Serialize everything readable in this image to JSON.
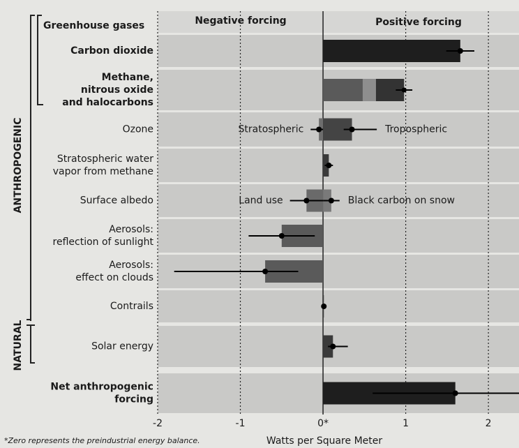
{
  "chart_data": {
    "type": "bar",
    "headers": [
      "Negative forcing",
      "Positive forcing"
    ],
    "groups": [
      "ANTHROPOGENIC",
      "NATURAL"
    ],
    "subgroup": "Greenhouse gases",
    "xlabel": "Watts per Square Meter",
    "footnote": "*Zero represents the preindustrial energy balance.",
    "xlim": [
      -2,
      2.37
    ],
    "xticks": [
      -2,
      -1,
      {
        "value": 0,
        "label": "0*"
      },
      1,
      2
    ],
    "grid": true,
    "rows": [
      {
        "label": [
          "Carbon dioxide"
        ],
        "bold": true,
        "items": [
          {
            "value": 1.66,
            "low": 1.49,
            "high": 1.83,
            "color": "#1e1e1e"
          }
        ]
      },
      {
        "label": [
          "Methane,",
          "nitrous oxide",
          "and halocarbons"
        ],
        "bold": true,
        "label_colors": [
          "#6a6a6a",
          "#8c8c8c",
          "#1e1e1e"
        ],
        "segments": [
          {
            "value": 0.48,
            "color": "#5a5a5a"
          },
          {
            "value": 0.16,
            "color": "#8e8e8e"
          },
          {
            "value": 0.34,
            "color": "#333333"
          }
        ],
        "low": 0.88,
        "high": 1.08
      },
      {
        "label": [
          "Ozone"
        ],
        "items": [
          {
            "name": "Stratospheric",
            "value": -0.05,
            "low": -0.15,
            "high": 0.05,
            "color": "#6e6e6e"
          },
          {
            "name": "Tropospheric",
            "value": 0.35,
            "low": 0.25,
            "high": 0.65,
            "color": "#444444"
          }
        ]
      },
      {
        "label": [
          "Stratospheric water",
          "vapor from methane"
        ],
        "items": [
          {
            "value": 0.07,
            "low": 0.02,
            "high": 0.12,
            "color": "#3a3a3a"
          }
        ]
      },
      {
        "label": [
          "Surface albedo"
        ],
        "items": [
          {
            "name": "Land use",
            "value": -0.2,
            "low": -0.4,
            "high": 0,
            "color": "#6a6a6a"
          },
          {
            "name": "Black carbon on snow",
            "value": 0.1,
            "low": 0,
            "high": 0.2,
            "color": "#7a7a7a"
          }
        ]
      },
      {
        "label": [
          "Aerosols:",
          "reflection of sunlight"
        ],
        "items": [
          {
            "value": -0.5,
            "low": -0.9,
            "high": -0.1,
            "color": "#5a5a5a"
          }
        ]
      },
      {
        "label": [
          "Aerosols:",
          "effect on clouds"
        ],
        "items": [
          {
            "value": -0.7,
            "low": -1.8,
            "high": -0.3,
            "color": "#5a5a5a"
          }
        ]
      },
      {
        "label": [
          "Contrails"
        ],
        "items": [
          {
            "value": 0.01,
            "low": 0.003,
            "high": 0.03,
            "color": "#3a3a3a"
          }
        ]
      },
      {
        "label": [
          "Solar energy"
        ],
        "items": [
          {
            "value": 0.12,
            "low": 0.06,
            "high": 0.3,
            "color": "#3a3a3a"
          }
        ]
      },
      {
        "label": [
          "Net anthropogenic",
          "forcing"
        ],
        "bold": true,
        "items": [
          {
            "value": 1.6,
            "low": 0.6,
            "high": 2.4,
            "color": "#1e1e1e"
          }
        ]
      }
    ]
  }
}
